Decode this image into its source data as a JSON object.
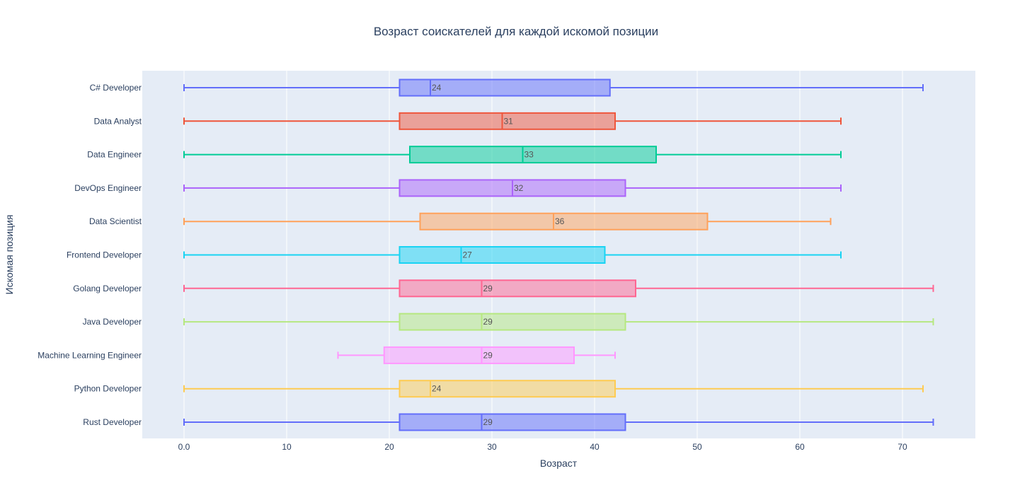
{
  "chart_data": {
    "type": "box",
    "orientation": "horizontal",
    "title": "Возраст соискателей для каждой искомой позиции",
    "xlabel": "Возраст",
    "ylabel": "Искомая позиция",
    "xlim": [
      -4,
      77
    ],
    "xticks": [
      0,
      10,
      20,
      30,
      40,
      50,
      60,
      70
    ],
    "xtick_labels": [
      "0.0",
      "10",
      "20",
      "30",
      "40",
      "50",
      "60",
      "70"
    ],
    "grid": true,
    "series": [
      {
        "category": "C# Developer",
        "min": 0,
        "q1": 21,
        "median": 24,
        "q3": 41.5,
        "max": 72,
        "median_label": "24",
        "color": "#636efa"
      },
      {
        "category": "Data Analyst",
        "min": 0,
        "q1": 21,
        "median": 31,
        "q3": 42,
        "max": 64,
        "median_label": "31",
        "color": "#EF553B"
      },
      {
        "category": "Data Engineer",
        "min": 0,
        "q1": 22,
        "median": 33,
        "q3": 46,
        "max": 64,
        "median_label": "33",
        "color": "#00cc96"
      },
      {
        "category": "DevOps Engineer",
        "min": 0,
        "q1": 21,
        "median": 32,
        "q3": 43,
        "max": 64,
        "median_label": "32",
        "color": "#ab63fa"
      },
      {
        "category": "Data Scientist",
        "min": 0,
        "q1": 23,
        "median": 36,
        "q3": 51,
        "max": 63,
        "median_label": "36",
        "color": "#FFA15A"
      },
      {
        "category": "Frontend Developer",
        "min": 0,
        "q1": 21,
        "median": 27,
        "q3": 41,
        "max": 64,
        "median_label": "27",
        "color": "#19d3f3"
      },
      {
        "category": "Golang Developer",
        "min": 0,
        "q1": 21,
        "median": 29,
        "q3": 44,
        "max": 73,
        "median_label": "29",
        "color": "#FF6692"
      },
      {
        "category": "Java Developer",
        "min": 0,
        "q1": 21,
        "median": 29,
        "q3": 43,
        "max": 73,
        "median_label": "29",
        "color": "#B6E880"
      },
      {
        "category": "Machine Learning Engineer",
        "min": 15,
        "q1": 19.5,
        "median": 29,
        "q3": 38,
        "max": 42,
        "median_label": "29",
        "color": "#FF97FF"
      },
      {
        "category": "Python Developer",
        "min": 0,
        "q1": 21,
        "median": 24,
        "q3": 42,
        "max": 72,
        "median_label": "24",
        "color": "#FECB52"
      },
      {
        "category": "Rust Developer",
        "min": 0,
        "q1": 21,
        "median": 29,
        "q3": 43,
        "max": 73,
        "median_label": "29",
        "color": "#636efa"
      }
    ]
  }
}
